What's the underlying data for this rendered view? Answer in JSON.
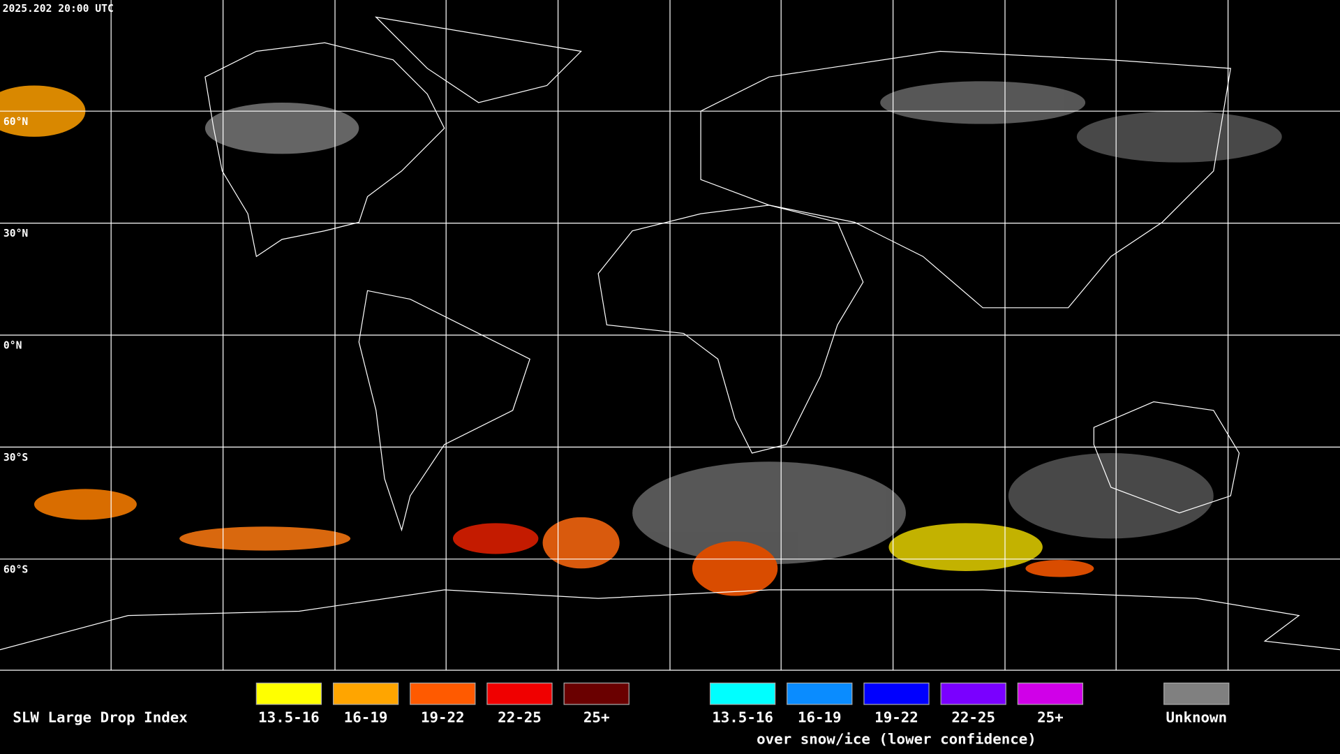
{
  "header": {
    "timestamp": "2025.202 20:00 UTC"
  },
  "latitude_labels": [
    "60°N",
    "30°N",
    "0°N",
    "30°S",
    "60°S"
  ],
  "legend": {
    "title": "SLW Large Drop Index",
    "groups": [
      {
        "items": [
          {
            "label": "13.5-16",
            "color": "#ffff00"
          },
          {
            "label": "16-19",
            "color": "#ffa500"
          },
          {
            "label": "19-22",
            "color": "#ff5a00"
          },
          {
            "label": "22-25",
            "color": "#f00000"
          },
          {
            "label": "25+",
            "color": "#6a0000"
          }
        ]
      },
      {
        "items": [
          {
            "label": "13.5-16",
            "color": "#00ffff"
          },
          {
            "label": "16-19",
            "color": "#0a8cff"
          },
          {
            "label": "19-22",
            "color": "#0000ff"
          },
          {
            "label": "22-25",
            "color": "#7a00ff"
          },
          {
            "label": "25+",
            "color": "#d000e8"
          }
        ],
        "note": "over snow/ice (lower confidence)"
      },
      {
        "items": [
          {
            "label": "Unknown",
            "color": "#808080"
          }
        ]
      }
    ]
  }
}
